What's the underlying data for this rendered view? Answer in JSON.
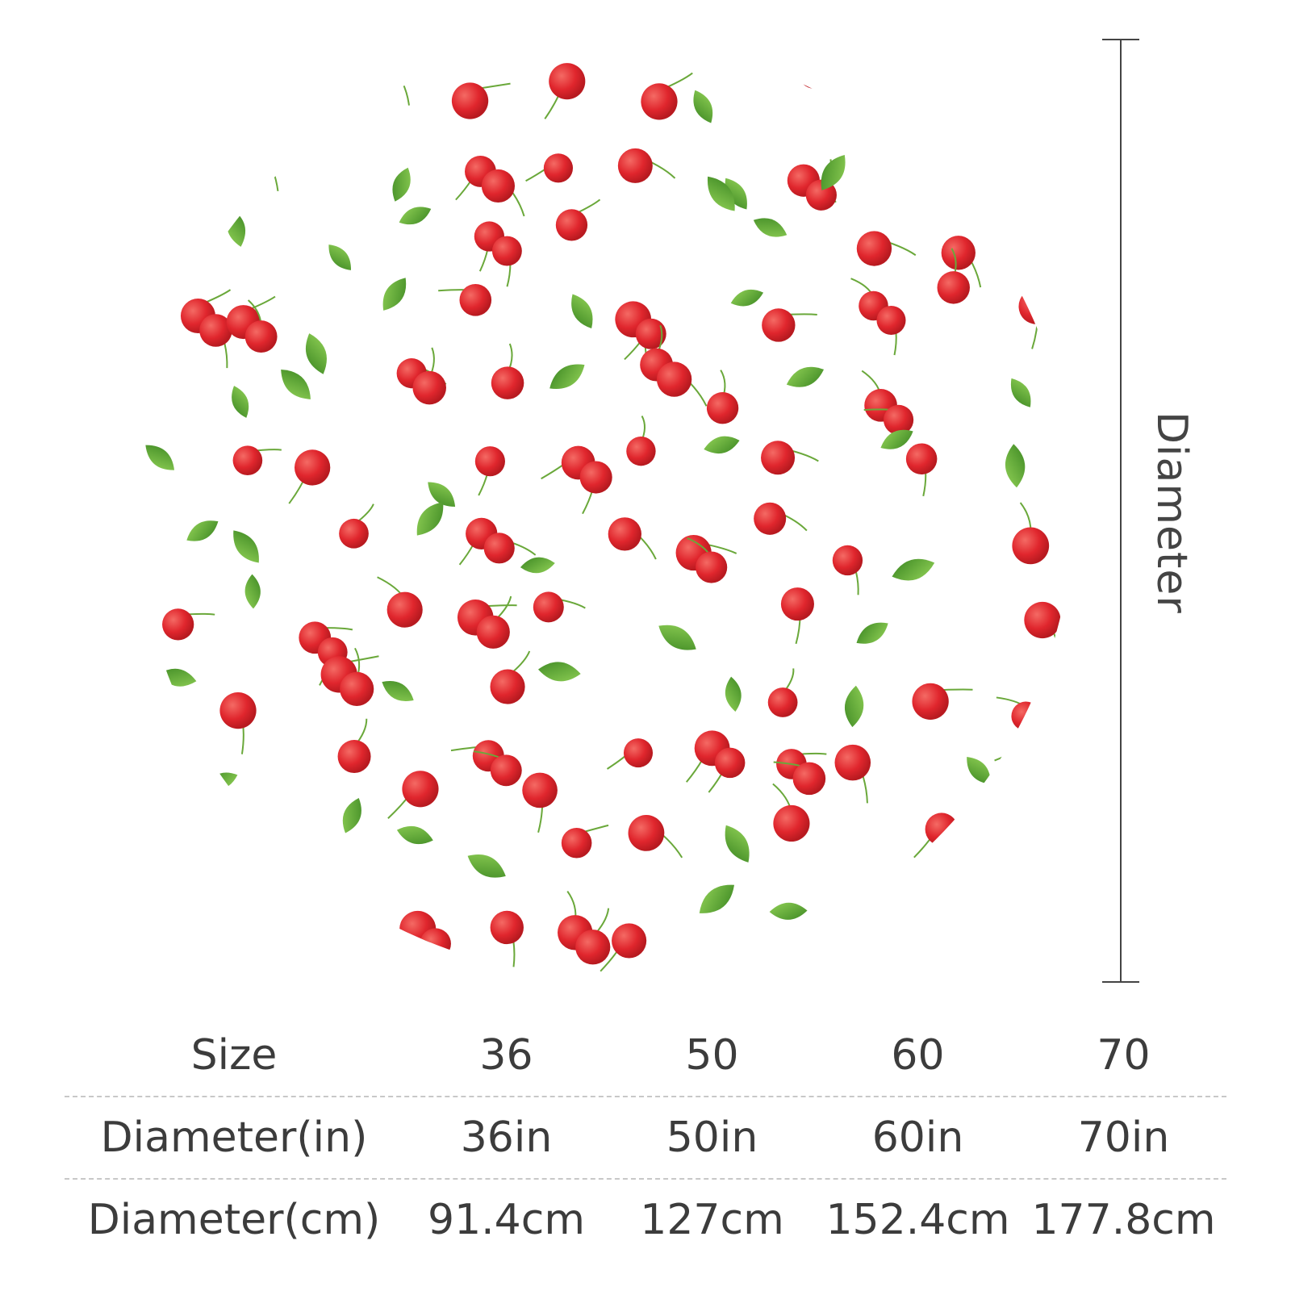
{
  "dimension_label": "Diameter",
  "table": {
    "rows": [
      {
        "label": "Size",
        "values": [
          "36",
          "50",
          "60",
          "70"
        ]
      },
      {
        "label": "Diameter(in)",
        "values": [
          "36in",
          "50in",
          "60in",
          "70in"
        ]
      },
      {
        "label": "Diameter(cm)",
        "values": [
          "91.4cm",
          "127cm",
          "152.4cm",
          "177.8cm"
        ]
      }
    ]
  },
  "colors": {
    "cherry": "#d8232a",
    "cherry_highlight": "#f46a64",
    "leaf": "#4c9a2c",
    "leaf_light": "#7dc04a",
    "stem": "#6aa83a"
  },
  "pattern_icons": [
    "cherry-icon",
    "leaf-icon"
  ]
}
